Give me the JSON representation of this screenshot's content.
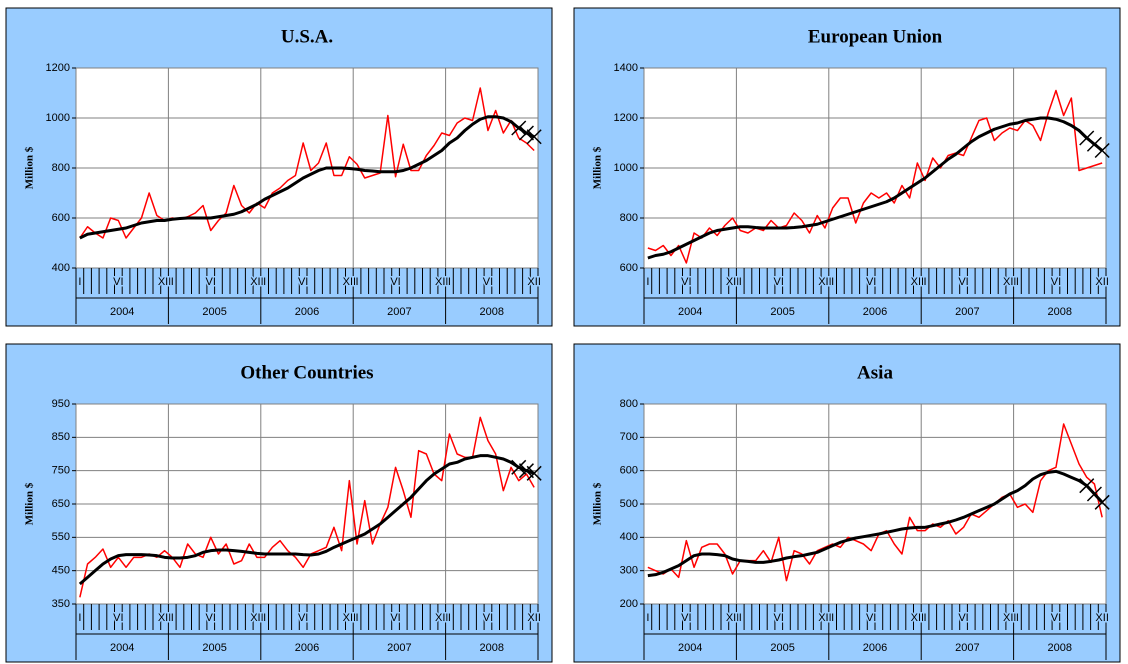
{
  "chart_data": [
    {
      "type": "line",
      "title": "U.S.A.",
      "y_label": "Million $",
      "categories": [
        "I",
        null,
        null,
        null,
        null,
        "VI",
        null,
        null,
        null,
        null,
        null,
        "XII",
        "I",
        null,
        null,
        null,
        null,
        "VI",
        null,
        null,
        null,
        null,
        null,
        "XII",
        "I",
        null,
        null,
        null,
        null,
        "VI",
        null,
        null,
        null,
        null,
        null,
        "XII",
        "I",
        null,
        null,
        null,
        null,
        "VI",
        null,
        null,
        null,
        null,
        null,
        "XII",
        "I",
        null,
        null,
        null,
        null,
        "VI",
        null,
        null,
        null,
        null,
        null,
        "XII"
      ],
      "year_labels": [
        "2004",
        "2005",
        "2006",
        "2007",
        "2008"
      ],
      "ylim": [
        400,
        1200
      ],
      "yticks": [
        400,
        600,
        800,
        1000,
        1200
      ],
      "grid": true,
      "series": [
        {
          "color": "#ff0000",
          "values": [
            520,
            565,
            540,
            520,
            600,
            590,
            520,
            560,
            600,
            700,
            610,
            590,
            600,
            595,
            605,
            620,
            650,
            550,
            590,
            620,
            730,
            650,
            620,
            660,
            640,
            700,
            720,
            750,
            770,
            900,
            790,
            820,
            900,
            770,
            770,
            845,
            815,
            760,
            770,
            780,
            1010,
            765,
            895,
            790,
            790,
            850,
            890,
            940,
            930,
            980,
            1000,
            990,
            1120,
            950,
            1030,
            940,
            990,
            920,
            900,
            870
          ]
        },
        {
          "color": "#000000",
          "values": [
            520,
            535,
            540,
            545,
            550,
            555,
            560,
            570,
            580,
            585,
            590,
            590,
            595,
            598,
            600,
            600,
            600,
            600,
            605,
            610,
            615,
            625,
            640,
            655,
            675,
            690,
            705,
            720,
            740,
            760,
            775,
            790,
            800,
            800,
            800,
            798,
            795,
            790,
            788,
            785,
            785,
            785,
            790,
            800,
            815,
            830,
            850,
            870,
            900,
            920,
            950,
            975,
            995,
            1005,
            1005,
            1000,
            985,
            null,
            null,
            null
          ]
        },
        {
          "color": "#000000",
          "marker": "x",
          "values": [
            null,
            null,
            null,
            null,
            null,
            null,
            null,
            null,
            null,
            null,
            null,
            null,
            null,
            null,
            null,
            null,
            null,
            null,
            null,
            null,
            null,
            null,
            null,
            null,
            null,
            null,
            null,
            null,
            null,
            null,
            null,
            null,
            null,
            null,
            null,
            null,
            null,
            null,
            null,
            null,
            null,
            null,
            null,
            null,
            null,
            null,
            null,
            null,
            null,
            null,
            null,
            null,
            null,
            null,
            null,
            null,
            null,
            960,
            940,
            925
          ]
        }
      ]
    },
    {
      "type": "line",
      "title": "European Union",
      "y_label": "Million $",
      "categories": [
        "I",
        null,
        null,
        null,
        null,
        "VI",
        null,
        null,
        null,
        null,
        null,
        "XII",
        "I",
        null,
        null,
        null,
        null,
        "VI",
        null,
        null,
        null,
        null,
        null,
        "XII",
        "I",
        null,
        null,
        null,
        null,
        "VI",
        null,
        null,
        null,
        null,
        null,
        "XII",
        "I",
        null,
        null,
        null,
        null,
        "VI",
        null,
        null,
        null,
        null,
        null,
        "XII",
        "I",
        null,
        null,
        null,
        null,
        "VI",
        null,
        null,
        null,
        null,
        null,
        "XII"
      ],
      "year_labels": [
        "2004",
        "2005",
        "2006",
        "2007",
        "2008"
      ],
      "ylim": [
        600,
        1400
      ],
      "yticks": [
        600,
        800,
        1000,
        1200,
        1400
      ],
      "grid": true,
      "series": [
        {
          "color": "#ff0000",
          "values": [
            680,
            670,
            690,
            650,
            690,
            620,
            740,
            720,
            760,
            730,
            770,
            800,
            750,
            740,
            760,
            750,
            790,
            760,
            770,
            820,
            790,
            740,
            810,
            760,
            840,
            880,
            880,
            780,
            860,
            900,
            880,
            900,
            860,
            930,
            880,
            1020,
            950,
            1040,
            1000,
            1050,
            1060,
            1050,
            1120,
            1190,
            1200,
            1110,
            1140,
            1160,
            1150,
            1190,
            1170,
            1110,
            1220,
            1310,
            1210,
            1280,
            990,
            1000,
            1010,
            1020
          ]
        },
        {
          "color": "#000000",
          "values": [
            640,
            650,
            655,
            665,
            680,
            695,
            710,
            725,
            740,
            750,
            755,
            760,
            765,
            765,
            762,
            760,
            760,
            760,
            760,
            762,
            765,
            770,
            775,
            785,
            795,
            805,
            815,
            825,
            835,
            845,
            855,
            865,
            880,
            900,
            920,
            940,
            960,
            985,
            1010,
            1035,
            1055,
            1080,
            1105,
            1125,
            1140,
            1155,
            1165,
            1175,
            1180,
            1190,
            1195,
            1200,
            1200,
            1195,
            1185,
            1170,
            1150,
            null,
            null,
            null
          ]
        },
        {
          "color": "#000000",
          "marker": "x",
          "values": [
            null,
            null,
            null,
            null,
            null,
            null,
            null,
            null,
            null,
            null,
            null,
            null,
            null,
            null,
            null,
            null,
            null,
            null,
            null,
            null,
            null,
            null,
            null,
            null,
            null,
            null,
            null,
            null,
            null,
            null,
            null,
            null,
            null,
            null,
            null,
            null,
            null,
            null,
            null,
            null,
            null,
            null,
            null,
            null,
            null,
            null,
            null,
            null,
            null,
            null,
            null,
            null,
            null,
            null,
            null,
            null,
            null,
            1120,
            1095,
            1070
          ]
        }
      ]
    },
    {
      "type": "line",
      "title": "Other Countries",
      "y_label": "Million $",
      "categories": [
        "I",
        null,
        null,
        null,
        null,
        "VI",
        null,
        null,
        null,
        null,
        null,
        "XII",
        "I",
        null,
        null,
        null,
        null,
        "VI",
        null,
        null,
        null,
        null,
        null,
        "XII",
        "I",
        null,
        null,
        null,
        null,
        "VI",
        null,
        null,
        null,
        null,
        null,
        "XII",
        "I",
        null,
        null,
        null,
        null,
        "VI",
        null,
        null,
        null,
        null,
        null,
        "XII",
        "I",
        null,
        null,
        null,
        null,
        "VI",
        null,
        null,
        null,
        null,
        null,
        "XII"
      ],
      "year_labels": [
        "2004",
        "2005",
        "2006",
        "2007",
        "2008"
      ],
      "ylim": [
        350,
        950
      ],
      "yticks": [
        350,
        450,
        550,
        650,
        750,
        850,
        950
      ],
      "grid": true,
      "series": [
        {
          "color": "#ff0000",
          "values": [
            370,
            470,
            490,
            515,
            460,
            490,
            460,
            490,
            490,
            500,
            490,
            510,
            490,
            460,
            530,
            500,
            490,
            550,
            500,
            530,
            470,
            480,
            530,
            490,
            490,
            520,
            540,
            510,
            490,
            460,
            500,
            510,
            520,
            580,
            510,
            720,
            530,
            660,
            530,
            590,
            640,
            760,
            690,
            610,
            810,
            800,
            740,
            720,
            860,
            800,
            790,
            790,
            910,
            840,
            800,
            690,
            760,
            720,
            740,
            700
          ]
        },
        {
          "color": "#000000",
          "values": [
            410,
            430,
            450,
            470,
            485,
            495,
            498,
            498,
            498,
            497,
            495,
            490,
            488,
            488,
            490,
            495,
            505,
            510,
            512,
            512,
            510,
            508,
            505,
            502,
            500,
            500,
            500,
            500,
            500,
            498,
            497,
            500,
            508,
            520,
            530,
            540,
            550,
            560,
            575,
            590,
            610,
            630,
            650,
            670,
            695,
            720,
            740,
            755,
            770,
            775,
            785,
            790,
            795,
            795,
            790,
            785,
            775,
            null,
            null,
            null
          ]
        },
        {
          "color": "#000000",
          "marker": "x",
          "values": [
            null,
            null,
            null,
            null,
            null,
            null,
            null,
            null,
            null,
            null,
            null,
            null,
            null,
            null,
            null,
            null,
            null,
            null,
            null,
            null,
            null,
            null,
            null,
            null,
            null,
            null,
            null,
            null,
            null,
            null,
            null,
            null,
            null,
            null,
            null,
            null,
            null,
            null,
            null,
            null,
            null,
            null,
            null,
            null,
            null,
            null,
            null,
            null,
            null,
            null,
            null,
            null,
            null,
            null,
            null,
            null,
            null,
            760,
            750,
            742
          ]
        }
      ]
    },
    {
      "type": "line",
      "title": "Asia",
      "y_label": "Million $",
      "categories": [
        "I",
        null,
        null,
        null,
        null,
        "VI",
        null,
        null,
        null,
        null,
        null,
        "XII",
        "I",
        null,
        null,
        null,
        null,
        "VI",
        null,
        null,
        null,
        null,
        null,
        "XII",
        "I",
        null,
        null,
        null,
        null,
        "VI",
        null,
        null,
        null,
        null,
        null,
        "XII",
        "I",
        null,
        null,
        null,
        null,
        "VI",
        null,
        null,
        null,
        null,
        null,
        "XII",
        "I",
        null,
        null,
        null,
        null,
        "VI",
        null,
        null,
        null,
        null,
        null,
        "XII"
      ],
      "year_labels": [
        "2004",
        "2005",
        "2006",
        "2007",
        "2008"
      ],
      "ylim": [
        200,
        800
      ],
      "yticks": [
        200,
        300,
        400,
        500,
        600,
        700,
        800
      ],
      "grid": true,
      "series": [
        {
          "color": "#ff0000",
          "values": [
            310,
            300,
            290,
            305,
            280,
            390,
            310,
            370,
            380,
            380,
            350,
            290,
            330,
            330,
            330,
            360,
            325,
            400,
            270,
            360,
            350,
            320,
            360,
            370,
            380,
            370,
            400,
            390,
            380,
            360,
            410,
            420,
            380,
            350,
            460,
            420,
            420,
            440,
            430,
            450,
            410,
            430,
            470,
            460,
            480,
            500,
            520,
            530,
            490,
            500,
            475,
            570,
            600,
            610,
            740,
            680,
            620,
            580,
            560,
            460
          ]
        },
        {
          "color": "#000000",
          "values": [
            285,
            288,
            295,
            305,
            315,
            330,
            345,
            350,
            350,
            348,
            345,
            335,
            330,
            328,
            325,
            325,
            328,
            332,
            338,
            342,
            345,
            350,
            355,
            365,
            375,
            385,
            392,
            398,
            402,
            406,
            410,
            415,
            420,
            425,
            428,
            430,
            430,
            435,
            440,
            445,
            452,
            460,
            470,
            480,
            490,
            500,
            515,
            530,
            540,
            555,
            575,
            588,
            595,
            598,
            590,
            580,
            570,
            null,
            null,
            null
          ]
        },
        {
          "color": "#000000",
          "marker": "x",
          "values": [
            null,
            null,
            null,
            null,
            null,
            null,
            null,
            null,
            null,
            null,
            null,
            null,
            null,
            null,
            null,
            null,
            null,
            null,
            null,
            null,
            null,
            null,
            null,
            null,
            null,
            null,
            null,
            null,
            null,
            null,
            null,
            null,
            null,
            null,
            null,
            null,
            null,
            null,
            null,
            null,
            null,
            null,
            null,
            null,
            null,
            null,
            null,
            null,
            null,
            null,
            null,
            null,
            null,
            null,
            null,
            null,
            null,
            555,
            530,
            505
          ]
        }
      ]
    }
  ]
}
